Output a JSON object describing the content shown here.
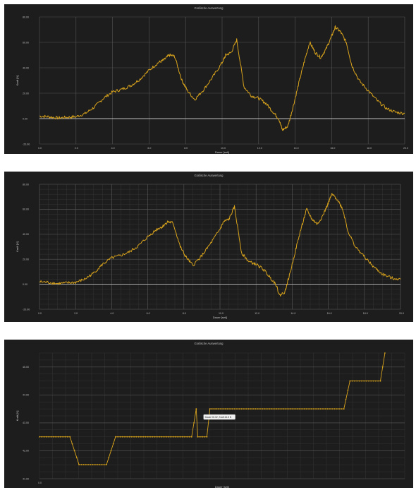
{
  "colors": {
    "background": "#1d1d1d",
    "line": "#d8a31c",
    "major_grid": "#555555",
    "minor_grid": "#3a3a3a",
    "zero_line": "#bdbdbd",
    "text": "#bdbdbd"
  },
  "chart_data": [
    {
      "type": "line",
      "title": "Grafische Auswertung",
      "xlabel": "Dauer [sek]",
      "ylabel": "Kraft [N]",
      "xlim": [
        0,
        20
      ],
      "ylim": [
        -20,
        80
      ],
      "xticks": [
        0,
        2,
        4,
        6,
        8,
        10,
        12,
        14,
        16,
        18,
        20
      ],
      "xtick_labels": [
        "0.0",
        "2.0",
        "4.0",
        "6.0",
        "8.0",
        "10.0",
        "12.0",
        "14.0",
        "16.0",
        "18.0",
        "20.0"
      ],
      "yticks": [
        -20,
        0,
        20,
        40,
        60,
        80
      ],
      "ytick_labels": [
        "-20.00",
        "0.00",
        "20.00",
        "40.00",
        "60.00",
        "80.00"
      ],
      "grid": "major",
      "x": [
        0,
        0.5,
        1,
        1.5,
        2,
        2.5,
        3,
        3.5,
        4,
        4.5,
        5,
        5.5,
        6,
        6.5,
        6.8,
        7.1,
        7.4,
        7.8,
        8.1,
        8.5,
        9,
        9.5,
        10,
        10.2,
        10.5,
        10.8,
        11.2,
        11.6,
        12,
        12.4,
        12.8,
        13.1,
        13.3,
        13.6,
        13.9,
        14.2,
        14.5,
        14.8,
        15.1,
        15.4,
        15.7,
        16,
        16.2,
        16.5,
        16.8,
        17.1,
        17.5,
        18,
        18.5,
        19,
        19.5,
        20
      ],
      "series": [
        {
          "values": [
            2,
            1.5,
            0.5,
            1,
            1.5,
            4,
            9,
            16,
            21,
            23,
            26,
            31,
            38,
            44,
            46,
            50,
            49,
            30,
            22,
            15,
            23,
            33,
            44,
            50,
            52,
            62,
            25,
            18,
            16,
            12,
            5,
            0,
            -9,
            -6,
            10,
            28,
            45,
            60,
            52,
            48,
            55,
            65,
            72,
            68,
            60,
            42,
            30,
            22,
            14,
            8,
            5,
            4
          ]
        }
      ]
    },
    {
      "type": "line",
      "title": "Grafische Auswertung",
      "xlabel": "Dauer [sek]",
      "ylabel": "Kraft [N]",
      "xlim": [
        0,
        20
      ],
      "ylim": [
        -20,
        80
      ],
      "xticks": [
        0,
        2,
        4,
        6,
        8,
        10,
        12,
        14,
        16,
        18,
        20
      ],
      "xtick_labels": [
        "0.0",
        "2.0",
        "4.0",
        "6.0",
        "8.0",
        "10.0",
        "12.0",
        "14.0",
        "16.0",
        "18.0",
        "20.0"
      ],
      "yticks": [
        -20,
        0,
        20,
        40,
        60,
        80
      ],
      "ytick_labels": [
        "-20.00",
        "0.00",
        "20.00",
        "40.00",
        "60.00",
        "80.00"
      ],
      "grid": "major+minor",
      "x": [
        0,
        0.5,
        1,
        1.5,
        2,
        2.5,
        3,
        3.5,
        4,
        4.5,
        5,
        5.5,
        6,
        6.5,
        6.8,
        7.1,
        7.4,
        7.8,
        8.1,
        8.5,
        9,
        9.5,
        10,
        10.2,
        10.5,
        10.8,
        11.2,
        11.6,
        12,
        12.4,
        12.8,
        13.1,
        13.3,
        13.6,
        13.9,
        14.2,
        14.5,
        14.8,
        15.1,
        15.4,
        15.7,
        16,
        16.2,
        16.5,
        16.8,
        17.1,
        17.5,
        18,
        18.5,
        19,
        19.5,
        20
      ],
      "series": [
        {
          "values": [
            2,
            1.5,
            0.5,
            1,
            1.5,
            4,
            9,
            16,
            21,
            23,
            26,
            31,
            38,
            44,
            46,
            50,
            49,
            30,
            22,
            15,
            23,
            33,
            44,
            50,
            52,
            62,
            25,
            18,
            16,
            12,
            5,
            0,
            -9,
            -6,
            10,
            28,
            45,
            60,
            52,
            48,
            55,
            65,
            72,
            68,
            60,
            42,
            30,
            22,
            14,
            8,
            5,
            4
          ]
        }
      ]
    },
    {
      "type": "line",
      "title": "Grafische Auswertung",
      "xlabel": "Dauer [sek]",
      "ylabel": "Kraft [N]",
      "xlim": [
        0,
        1.2
      ],
      "ylim": [
        41,
        45.5
      ],
      "xticks": [
        0
      ],
      "xtick_labels": [
        "0.0"
      ],
      "yticks": [
        41,
        42,
        43,
        44,
        45
      ],
      "ytick_labels": [
        "41.00",
        "42.00",
        "43.00",
        "44.00",
        "45.00"
      ],
      "grid": "major+minor",
      "markers": true,
      "tooltip": "Dauer 00.02, Kraft 44.5 N",
      "x": [
        0,
        0.1,
        0.13,
        0.22,
        0.25,
        0.5,
        0.515,
        0.52,
        0.535,
        0.55,
        0.56,
        0.58,
        1.0,
        1.02,
        1.12,
        1.135
      ],
      "series": [
        {
          "values": [
            42.5,
            42.5,
            41.5,
            41.5,
            42.5,
            42.5,
            43.5,
            42.5,
            42.5,
            42.5,
            43.5,
            43.5,
            43.5,
            44.5,
            44.5,
            45.5
          ]
        }
      ]
    }
  ]
}
